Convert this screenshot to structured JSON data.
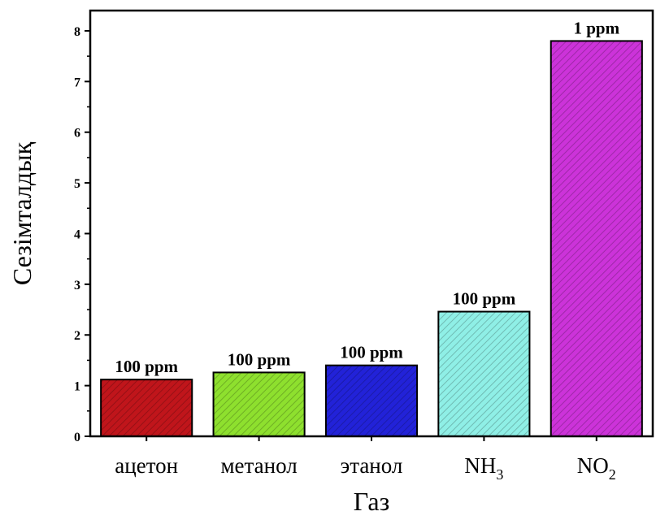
{
  "chart_data": {
    "type": "bar",
    "title": "",
    "xlabel": "Газ",
    "ylabel": "Сезімталдық",
    "ylim": [
      0,
      8.4
    ],
    "yticks": [
      "0",
      "1",
      "2",
      "3",
      "4",
      "5",
      "6",
      "7",
      "8"
    ],
    "grid": false,
    "legend": "none",
    "categories": [
      {
        "main": "ацетон",
        "sub": ""
      },
      {
        "main": "метанол",
        "sub": ""
      },
      {
        "main": "этанол",
        "sub": ""
      },
      {
        "main": "NH",
        "sub": "3"
      },
      {
        "main": "NO",
        "sub": "2"
      }
    ],
    "values": [
      1.12,
      1.26,
      1.4,
      2.46,
      7.8
    ],
    "data_labels": [
      "100 ppm",
      "100 ppm",
      "100 ppm",
      "100 ppm",
      "1 ppm"
    ],
    "colors": [
      "#c0151b",
      "#8ee02e",
      "#2222d8",
      "#8fefe6",
      "#cc33d9"
    ],
    "hatch": true
  }
}
